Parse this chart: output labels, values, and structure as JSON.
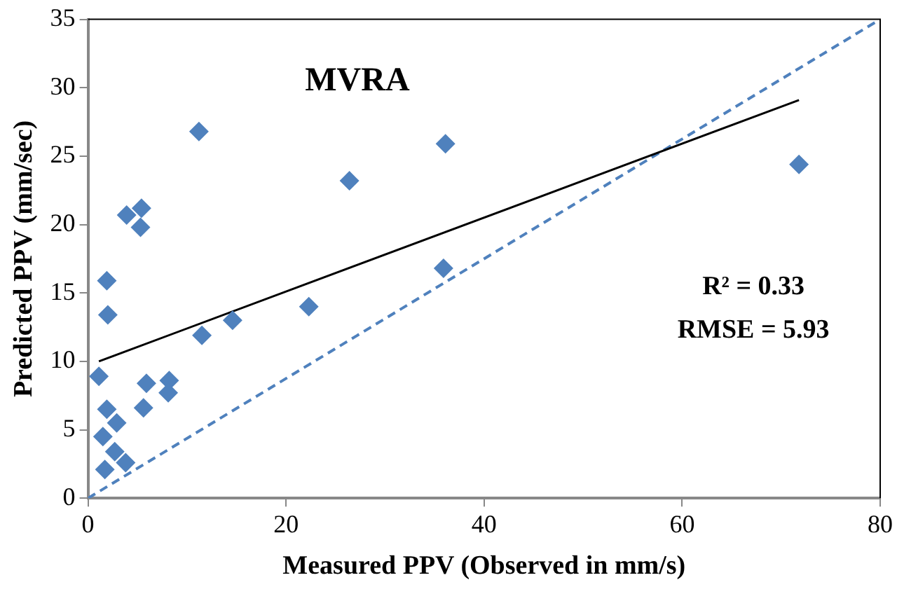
{
  "chart_data": {
    "type": "scatter",
    "xlabel": "Measured PPV (Observed in mm/s)",
    "ylabel": "Predicted PPV (mm/sec)",
    "annotations": [
      "MVRA",
      "R² = 0.33",
      "RMSE = 5.93"
    ],
    "xlim": [
      0,
      80
    ],
    "xticks": [
      0,
      20,
      40,
      60,
      80
    ],
    "ylim": [
      0,
      35
    ],
    "yticks": [
      0,
      5,
      10,
      15,
      20,
      25,
      30,
      35
    ],
    "grid": false,
    "legend": false,
    "series": [
      {
        "color": "#4f81bd",
        "marker": "diamond",
        "x": [
          3.9,
          5.4,
          5.3,
          1.9,
          2.0,
          11.5,
          14.6,
          1.1,
          5.9,
          8.2,
          8.1,
          5.6,
          1.9,
          2.9,
          1.5,
          2.7,
          3.8,
          1.7,
          11.2,
          26.4,
          36.1,
          71.8,
          35.9,
          22.3
        ],
        "values": [
          20.7,
          21.2,
          19.8,
          15.9,
          13.4,
          11.9,
          13.0,
          8.9,
          8.4,
          8.6,
          7.7,
          6.6,
          6.5,
          5.5,
          4.5,
          3.4,
          2.6,
          2.1,
          26.8,
          23.2,
          25.9,
          24.4,
          16.8,
          14.0
        ]
      },
      {
        "type": "line",
        "color": "#000000",
        "line_style": "solid",
        "marker": "none",
        "x": [
          1.1,
          71.8
        ],
        "values": [
          10.0,
          29.1
        ]
      },
      {
        "type": "line",
        "color": "#4f81bd",
        "line_style": "dashed",
        "marker": "none",
        "x": [
          0,
          80
        ],
        "values": [
          0,
          35
        ]
      }
    ]
  }
}
